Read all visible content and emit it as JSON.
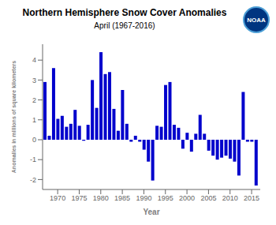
{
  "chart_data": {
    "type": "bar",
    "title": "Northern Hemisphere Snow Cover Anomalies",
    "subtitle": "April (1967-2016)",
    "x_label": "Year",
    "y_label": "Anomalies in millions of square kilometers",
    "x": [
      1967,
      1968,
      1969,
      1970,
      1971,
      1972,
      1973,
      1974,
      1975,
      1976,
      1977,
      1978,
      1979,
      1980,
      1981,
      1982,
      1983,
      1984,
      1985,
      1986,
      1987,
      1988,
      1989,
      1990,
      1991,
      1992,
      1993,
      1994,
      1995,
      1996,
      1997,
      1998,
      1999,
      2000,
      2001,
      2002,
      2003,
      2004,
      2005,
      2006,
      2007,
      2008,
      2009,
      2010,
      2011,
      2012,
      2013,
      2014,
      2015,
      2016
    ],
    "values": [
      2.9,
      0.2,
      3.6,
      1.05,
      1.2,
      0.65,
      0.8,
      1.5,
      0.7,
      -0.05,
      0.75,
      3.0,
      1.6,
      4.4,
      3.3,
      3.4,
      1.55,
      0.45,
      2.5,
      0.8,
      -0.1,
      0.2,
      -0.1,
      -0.5,
      -1.1,
      -2.05,
      0.7,
      0.65,
      2.75,
      2.9,
      0.75,
      0.6,
      -0.45,
      0.35,
      -0.6,
      0.3,
      1.25,
      0.3,
      -0.55,
      -0.8,
      -1.0,
      -0.9,
      -0.8,
      -0.95,
      -1.1,
      -1.8,
      2.4,
      -0.1,
      -0.1,
      -2.3
    ],
    "color": "#0000CC",
    "xlim": [
      1966.5,
      2017.0
    ],
    "xticks": [
      1970,
      1975,
      1980,
      1985,
      1990,
      1995,
      2000,
      2005,
      2010,
      2015
    ],
    "ylim": [
      -2.5,
      4.8
    ],
    "yticks": [
      -2,
      -1,
      0,
      1,
      2,
      3,
      4
    ],
    "grid": false,
    "annotations": [
      "NOAA"
    ]
  }
}
